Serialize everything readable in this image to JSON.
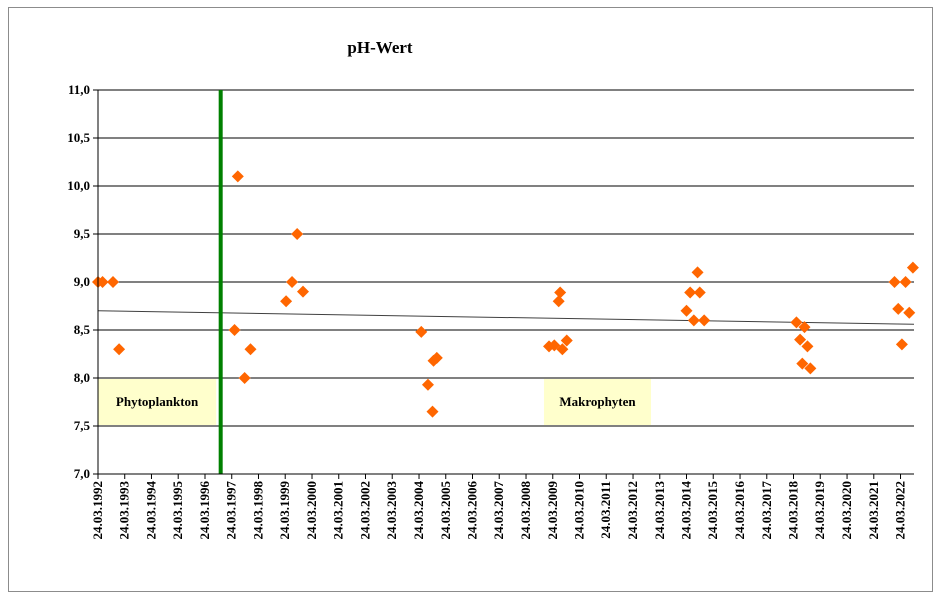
{
  "chart_data": {
    "type": "scatter",
    "title": "pH-Wert",
    "xlabel": "",
    "ylabel": "",
    "ylim": [
      7.0,
      11.0
    ],
    "xlim": [
      "1992-03-24",
      "2022-09-24"
    ],
    "y_ticks": [
      "7,0",
      "7,5",
      "8,0",
      "8,5",
      "9,0",
      "9,5",
      "10,0",
      "10,5",
      "11,0"
    ],
    "x_ticks": [
      "24.03.1992",
      "24.03.1993",
      "24.03.1994",
      "24.03.1995",
      "24.03.1996",
      "24.03.1997",
      "24.03.1998",
      "24.03.1999",
      "24.03.2000",
      "24.03.2001",
      "24.03.2002",
      "24.03.2003",
      "24.03.2004",
      "24.03.2005",
      "24.03.2006",
      "24.03.2007",
      "24.03.2008",
      "24.03.2009",
      "24.03.2010",
      "24.03.2011",
      "24.03.2012",
      "24.03.2013",
      "24.03.2014",
      "24.03.2015",
      "24.03.2016",
      "24.03.2017",
      "24.03.2018",
      "24.03.2019",
      "24.03.2020",
      "24.03.2021",
      "24.03.2022"
    ],
    "grid": "horizontal",
    "marker_color": "#ff6600",
    "trend_color": "#404040",
    "divider_color": "#008000",
    "label_box_color": "#ffffcc",
    "points": [
      {
        "x": "1992-03-24",
        "y": 9.0
      },
      {
        "x": "1992-05-25",
        "y": 9.0
      },
      {
        "x": "1992-10-15",
        "y": 9.0
      },
      {
        "x": "1993-01-06",
        "y": 8.3
      },
      {
        "x": "1997-05-01",
        "y": 8.5
      },
      {
        "x": "1997-06-15",
        "y": 10.1
      },
      {
        "x": "1997-09-16",
        "y": 8.0
      },
      {
        "x": "1997-12-05",
        "y": 8.3
      },
      {
        "x": "1999-04-05",
        "y": 8.8
      },
      {
        "x": "1999-06-25",
        "y": 9.0
      },
      {
        "x": "1999-09-03",
        "y": 9.5
      },
      {
        "x": "1999-11-22",
        "y": 8.9
      },
      {
        "x": "2004-04-24",
        "y": 8.48
      },
      {
        "x": "2004-07-24",
        "y": 7.93
      },
      {
        "x": "2004-09-24",
        "y": 7.65
      },
      {
        "x": "2004-10-08",
        "y": 8.18
      },
      {
        "x": "2004-11-22",
        "y": 8.21
      },
      {
        "x": "2009-02-01",
        "y": 8.33
      },
      {
        "x": "2009-04-14",
        "y": 8.34
      },
      {
        "x": "2009-06-13",
        "y": 8.8
      },
      {
        "x": "2009-07-03",
        "y": 8.89
      },
      {
        "x": "2009-08-02",
        "y": 8.3
      },
      {
        "x": "2009-10-01",
        "y": 8.39
      },
      {
        "x": "2014-03-24",
        "y": 8.7
      },
      {
        "x": "2014-05-13",
        "y": 8.89
      },
      {
        "x": "2014-07-02",
        "y": 8.6
      },
      {
        "x": "2014-08-22",
        "y": 9.1
      },
      {
        "x": "2014-09-21",
        "y": 8.89
      },
      {
        "x": "2014-11-20",
        "y": 8.6
      },
      {
        "x": "2018-05-03",
        "y": 8.58
      },
      {
        "x": "2018-06-22",
        "y": 8.4
      },
      {
        "x": "2018-07-22",
        "y": 8.15
      },
      {
        "x": "2018-08-21",
        "y": 8.53
      },
      {
        "x": "2018-09-30",
        "y": 8.33
      },
      {
        "x": "2018-11-09",
        "y": 8.1
      },
      {
        "x": "2022-01-01",
        "y": 9.0
      },
      {
        "x": "2022-02-21",
        "y": 8.72
      },
      {
        "x": "2022-04-12",
        "y": 8.35
      },
      {
        "x": "2022-06-01",
        "y": 9.0
      },
      {
        "x": "2022-07-21",
        "y": 8.68
      },
      {
        "x": "2022-09-09",
        "y": 9.15
      }
    ],
    "trendline": {
      "start": {
        "x": "1992-03-24",
        "y": 8.7
      },
      "end": {
        "x": "2022-09-24",
        "y": 8.56
      }
    },
    "divider": {
      "x": "1996-10-24"
    },
    "annotations": [
      {
        "text": "Phytoplankton",
        "x_start": "1992-03-24",
        "x_end": "1996-08-24",
        "y_top": 8.0,
        "y_bottom": 7.5
      },
      {
        "text": "Makrophyten",
        "x_start": "2008-11-24",
        "x_end": "2012-11-24",
        "y_top": 8.0,
        "y_bottom": 7.5
      }
    ]
  }
}
